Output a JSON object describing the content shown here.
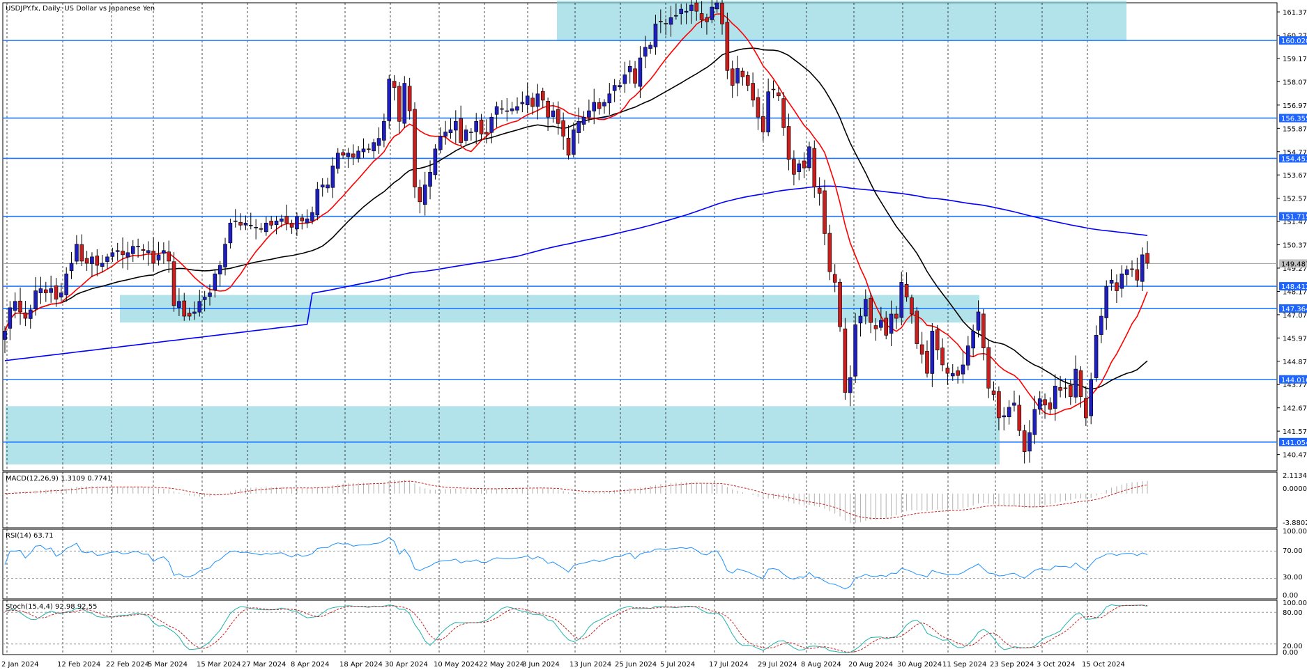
{
  "window_title": "USDJPY.fx, Daily:  US Dollar vs Japanese Yen",
  "colors": {
    "bull": "#1f1fbf",
    "bear": "#c81e1e",
    "ma_fast": "#ff0000",
    "ma_mid": "#000000",
    "ma_slow": "#0000ff",
    "level_line": "#1e78ff",
    "zone": "#7fcfdc",
    "label_bg": "#1e64ff",
    "current_price_bg": "#c0c0c0",
    "grid": "#000000"
  },
  "chart_data": [
    {
      "type": "candlestick",
      "title": "USDJPY.fx, Daily:  US Dollar vs Japanese Yen",
      "x_labels": [
        "2 Jan 2024",
        "12 Feb 2024",
        "22 Feb 2024",
        "5 Mar 2024",
        "15 Mar 2024",
        "27 Mar 2024",
        "8 Apr 2024",
        "18 Apr 2024",
        "30 Apr 2024",
        "10 May 2024",
        "22 May 2024",
        "3 Jun 2024",
        "13 Jun 2024",
        "25 Jun 2024",
        "5 Jul 2024",
        "17 Jul 2024",
        "29 Jul 2024",
        "8 Aug 2024",
        "20 Aug 2024",
        "30 Aug 2024",
        "11 Sep 2024",
        "23 Sep 2024",
        "3 Oct 2024",
        "15 Oct 2024"
      ],
      "y_ticks": [
        "161.370",
        "160.270",
        "159.170",
        "158.070",
        "156.970",
        "155.870",
        "154.770",
        "153.670",
        "152.570",
        "151.470",
        "150.370",
        "149.270",
        "148.170",
        "147.070",
        "145.970",
        "144.870",
        "143.770",
        "142.670",
        "141.570",
        "140.470"
      ],
      "ylim": [
        139.7,
        161.8
      ],
      "levels": [
        "160.020",
        "156.355",
        "154.453",
        "151.715",
        "148.412",
        "147.364",
        "144.016",
        "141.054"
      ],
      "current_price": "149.487",
      "zones": [
        {
          "x_from": "14 Jun 2024",
          "x_to": "15 Nov 2024",
          "y_from": 160.0,
          "y_to": 161.9
        },
        {
          "x_from": "1 Mar 2024",
          "x_to": "27 Sep 2024",
          "y_from": 146.7,
          "y_to": 148.0
        },
        {
          "x_from": "2 Jan 2024",
          "x_to": "1 Oct 2024",
          "y_from": 140.0,
          "y_to": 142.75
        }
      ],
      "close": [
        146.3,
        147.4,
        147.7,
        147.2,
        146.9,
        147.3,
        148.2,
        148.3,
        148.1,
        148.3,
        147.8,
        148.1,
        149.0,
        149.5,
        150.4,
        149.6,
        149.5,
        149.8,
        149.4,
        149.5,
        149.8,
        150.0,
        150.1,
        149.9,
        150.0,
        150.3,
        150.3,
        150.1,
        150.1,
        149.5,
        149.9,
        150.1,
        149.6,
        147.5,
        147.7,
        147.0,
        147.0,
        147.2,
        147.7,
        147.9,
        148.1,
        149.0,
        149.4,
        150.4,
        151.4,
        151.5,
        151.3,
        151.4,
        151.3,
        151.2,
        151.1,
        151.4,
        151.3,
        151.5,
        151.6,
        151.4,
        151.2,
        151.7,
        151.5,
        151.6,
        151.9,
        153.0,
        153.2,
        153.2,
        154.1,
        154.7,
        154.6,
        154.7,
        154.5,
        154.8,
        154.9,
        154.9,
        155.2,
        155.4,
        156.2,
        158.2,
        157.8,
        156.2,
        158.0,
        156.7,
        153.1,
        152.4,
        153.2,
        153.8,
        154.9,
        155.5,
        155.7,
        155.8,
        156.2,
        155.2,
        155.8,
        155.7,
        156.2,
        155.6,
        155.6,
        156.4,
        156.9,
        156.8,
        156.7,
        156.8,
        156.9,
        157.1,
        157.4,
        156.9,
        157.5,
        157.2,
        156.4,
        156.7,
        156.1,
        155.5,
        154.6,
        155.8,
        156.2,
        156.4,
        156.7,
        157.1,
        156.8,
        157.1,
        157.5,
        157.9,
        157.9,
        158.4,
        158.8,
        158.0,
        159.2,
        159.7,
        159.8,
        160.8,
        160.9,
        160.8,
        161.1,
        161.2,
        161.5,
        161.4,
        161.7,
        161.4,
        161.0,
        160.9,
        161.6,
        161.8,
        160.8,
        158.6,
        157.9,
        158.7,
        158.3,
        157.9,
        157.2,
        156.4,
        155.7,
        157.6,
        157.7,
        157.4,
        155.9,
        154.4,
        153.7,
        154.2,
        154.0,
        155.0,
        153.1,
        152.8,
        150.9,
        149.1,
        148.6,
        146.5,
        143.4,
        144.1,
        146.6,
        147.0,
        147.8,
        146.7,
        146.4,
        146.8,
        146.1,
        147.1,
        146.9,
        148.6,
        147.9,
        147.1,
        145.7,
        145.2,
        144.3,
        146.3,
        145.4,
        144.7,
        144.3,
        144.3,
        144.2,
        144.7,
        145.6,
        146.3,
        147.2,
        145.5,
        143.6,
        143.3,
        142.2,
        142.3,
        142.7,
        142.9,
        141.6,
        140.6,
        141.5,
        142.6,
        143.1,
        142.8,
        142.6,
        143.7,
        143.5,
        143.6,
        143.2,
        144.5,
        143.2,
        142.2,
        144.0,
        146.1,
        147.0,
        148.4,
        148.7,
        148.2,
        149.0,
        149.2,
        149.2,
        148.7,
        149.9,
        149.5
      ],
      "ma_fast_label": "",
      "ma_mid_label": "",
      "ma_slow_label": ""
    },
    {
      "type": "histogram+line",
      "title": "MACD(12,26,9) 1.3109 0.7741",
      "y_ticks": [
        "2.1134",
        "0.0000",
        "-3.8802"
      ],
      "ylim": [
        -3.8802,
        2.1134
      ]
    },
    {
      "type": "line",
      "title": "RSI(14) 63.71",
      "y_ticks": [
        "100.00",
        "70.00",
        "30.00",
        "0.00"
      ],
      "ylim": [
        0,
        100
      ],
      "levels": [
        70,
        30
      ]
    },
    {
      "type": "line",
      "title": "Stoch(15,4,4) 92.98 92.55",
      "y_ticks": [
        "100.00",
        "80.00",
        "20.00",
        "0.00"
      ],
      "ylim": [
        0,
        100
      ],
      "levels": [
        80,
        20
      ]
    }
  ]
}
